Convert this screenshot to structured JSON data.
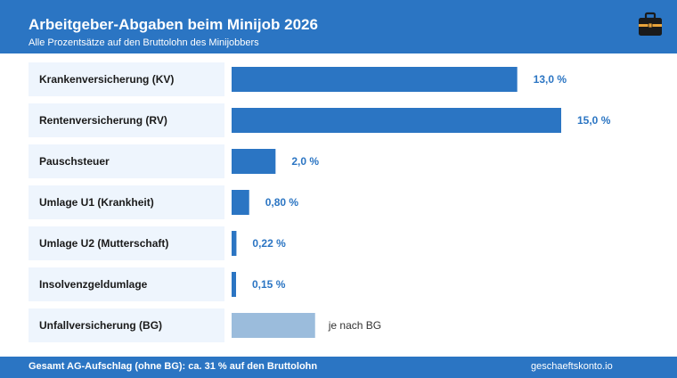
{
  "header": {
    "title": "Arbeitgeber-Abgaben beim Minijob 2026",
    "subtitle": "Alle Prozentsätze auf den Bruttolohn des Minijobbers",
    "icon": "briefcase-icon"
  },
  "chart_data": {
    "type": "bar",
    "orientation": "horizontal",
    "categories": [
      "Krankenversicherung (KV)",
      "Rentenversicherung (RV)",
      "Pauschsteuer",
      "Umlage U1 (Krankheit)",
      "Umlage U2 (Mutterschaft)",
      "Insolvenzgeldumlage",
      "Unfallversicherung (BG)"
    ],
    "values": [
      13.0,
      15.0,
      2.0,
      0.8,
      0.22,
      0.15,
      null
    ],
    "value_labels": [
      "13,0 %",
      "15,0 %",
      "2,0 %",
      "0,80 %",
      "0,22 %",
      "0,15 %",
      "je nach BG"
    ],
    "placeholder_value": 3.8,
    "unit": "%",
    "grid": false,
    "legend": "none",
    "xlim": [
      0,
      15.0
    ]
  },
  "colors": {
    "header_bg": "#2b75c3",
    "bar": "#2b75c3",
    "bar_placeholder": "#9bbcdc",
    "label_bg": "#eef5fd",
    "value_text": "#2b75c3",
    "placeholder_text": "#333333"
  },
  "footer": {
    "summary": "Gesamt AG-Aufschlag (ohne BG): ca. 31 % auf den Bruttolohn",
    "source": "geschaeftskonto.io"
  }
}
